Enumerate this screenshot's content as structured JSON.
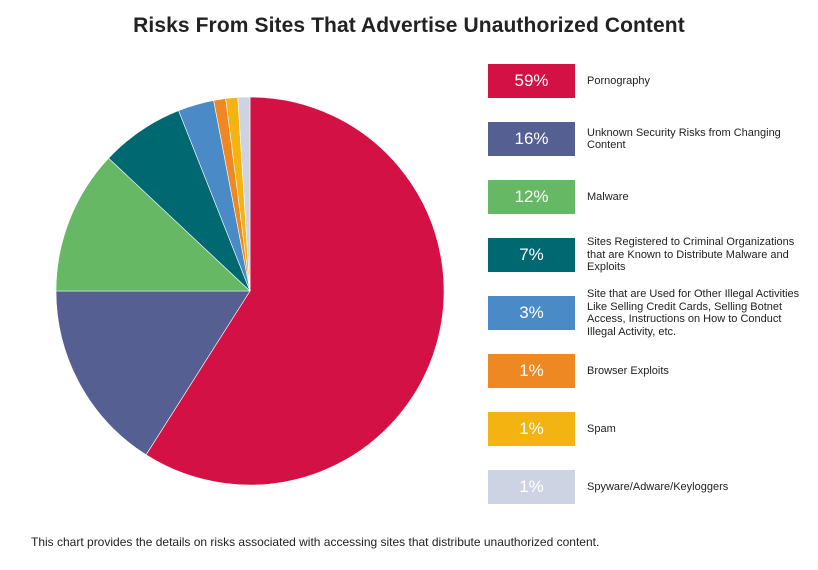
{
  "title": "Risks From Sites That Advertise Unauthorized Content",
  "caption": "This chart provides the details on risks associated with accessing sites that distribute unauthorized content.",
  "chart_data": {
    "type": "pie",
    "title": "Risks From Sites That Advertise Unauthorized Content",
    "legend_position": "right",
    "slices": [
      {
        "label": "Pornography",
        "value": 59,
        "display": "59%",
        "color": "#d31145",
        "text_color": "#ffffff"
      },
      {
        "label": "Unknown Security Risks from Changing Content",
        "value": 16,
        "display": "16%",
        "color": "#555f92",
        "text_color": "#ffffff"
      },
      {
        "label": "Malware",
        "value": 12,
        "display": "12%",
        "color": "#66b864",
        "text_color": "#ffffff"
      },
      {
        "label": "Sites Registered to Criminal Organizations that are Known to Distribute Malware and Exploits",
        "value": 7,
        "display": "7%",
        "color": "#006871",
        "text_color": "#ffffff"
      },
      {
        "label": "Site that are Used for Other Illegal Activities Like Selling Credit Cards, Selling Botnet Access, Instructions on How to Conduct Illegal Activity, etc.",
        "value": 3,
        "display": "3%",
        "color": "#4a8ac6",
        "text_color": "#ffffff"
      },
      {
        "label": "Browser Exploits",
        "value": 1,
        "display": "1%",
        "color": "#ee8822",
        "text_color": "#ffffff"
      },
      {
        "label": "Spam",
        "value": 1,
        "display": "1%",
        "color": "#f3b412",
        "text_color": "#ffffff"
      },
      {
        "label": "Spyware/Adware/Keyloggers",
        "value": 1,
        "display": "1%",
        "color": "#cdd3e3",
        "text_color": "#ffffff"
      }
    ]
  }
}
